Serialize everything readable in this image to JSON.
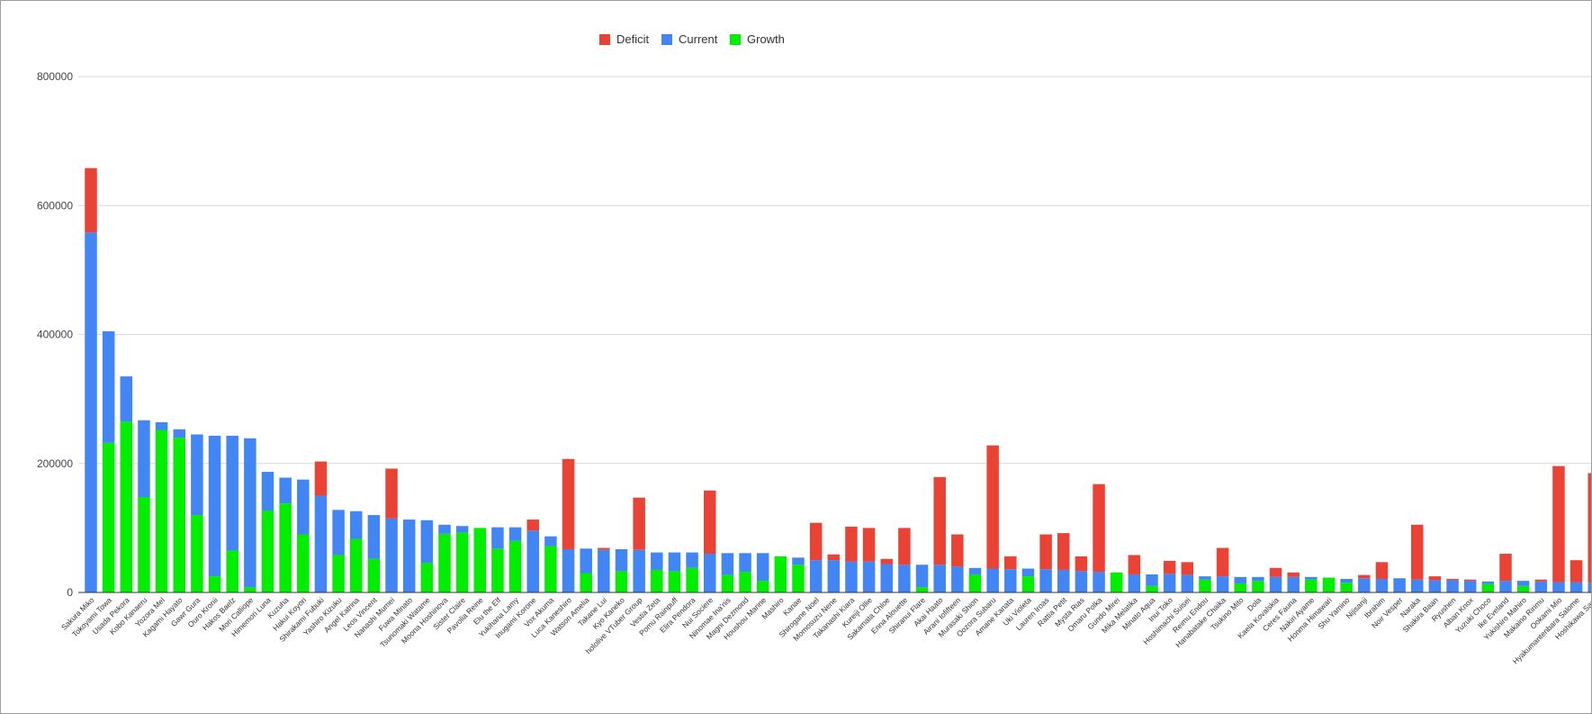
{
  "chart_data": {
    "type": "bar",
    "stacked": true,
    "title": "",
    "xlabel": "",
    "ylabel": "",
    "ylim": [
      0,
      800000
    ],
    "yticks": [
      0,
      200000,
      400000,
      600000,
      800000
    ],
    "ytick_labels": [
      "0",
      "200000",
      "400000",
      "600000",
      "800000"
    ],
    "grid": true,
    "legend_position": "top-center",
    "categories": [
      "Sakura Miko",
      "Tokoyami Towa",
      "Usada Pekora",
      "Kobo Kanaeru",
      "Yozora Mel",
      "Kagami Hayato",
      "Gawr Gura",
      "Ouro Kronii",
      "Hakos Baelz",
      "Mori Calliope",
      "Himemori Luna",
      "Kuzuha",
      "Hakui Koyori",
      "Shirakami Fubuki",
      "Yashiro Kizuku",
      "Angel Katrina",
      "Leos Vincent",
      "Nanashi Mumei",
      "Fuwa Minato",
      "Tsunomaki Watame",
      "Moona Hoshinova",
      "Sister Claire",
      "Pavolia Reine",
      "Elu the Elf",
      "Yukihana Lamy",
      "Inugami Korone",
      "Vox Akuma",
      "Luca Kaneshiro",
      "Watson Amelia",
      "Takane Lui",
      "Kyo Kaneko",
      "hololive VTuber Group",
      "Vestia Zeta",
      "Pomu Rainpuff",
      "Elira Pendora",
      "Nui Sociere",
      "Ninomae Ina'nis",
      "Magni Dezmond",
      "Houshou Marine",
      "Mashiro",
      "Kanae",
      "Shirogane Noel",
      "Momosuzu Nene",
      "Takanashi Kiara",
      "Kureiji Ollie",
      "Sakamata Chloe",
      "Enna Alouette",
      "Shiranui Flare",
      "Akai Haato",
      "Airani Iofifteen",
      "Murasaki Shion",
      "Oozora Subaru",
      "Amane Kanata",
      "Uki Violeta",
      "Lauren Iroas",
      "Rattia Petit",
      "Mysta Rias",
      "Omaru Polka",
      "Gundo Mirei",
      "Mika Melatika",
      "Minato Aqua",
      "Inui Toko",
      "Hoshimachi Suisei",
      "Reimu Endou",
      "Hanabatake Chaika",
      "Tsukino Mito",
      "Dola",
      "Kaela Kovalskia",
      "Ceres Fauna",
      "Nakiri Ayame",
      "Honma Himawari",
      "Shu Yamino",
      "Nijisanji",
      "Ibrahim",
      "Noir Vesper",
      "Naraka",
      "Shakira Baan",
      "Ryushen",
      "Alban Knox",
      "Yuzuki Choco",
      "Ike Eveland",
      "Yukishiro Mahiro",
      "Makaino Ririmu",
      "Ookami Mio",
      "Hyakumantenbara Salome",
      "Hoshikawa Sara"
    ],
    "series": [
      {
        "name": "Growth",
        "values": [
          0,
          232000,
          265000,
          148000,
          252000,
          240000,
          120000,
          25000,
          65000,
          8000,
          127000,
          138000,
          90000,
          0,
          58000,
          83000,
          52000,
          0,
          0,
          46000,
          91000,
          93000,
          100000,
          68000,
          80000,
          0,
          72000,
          0,
          30000,
          0,
          33000,
          0,
          35000,
          33000,
          38000,
          0,
          27000,
          32000,
          18000,
          56000,
          43000,
          0,
          0,
          0,
          0,
          0,
          0,
          8000,
          0,
          0,
          28000,
          0,
          0,
          25000,
          0,
          0,
          0,
          0,
          31000,
          0,
          10000,
          0,
          0,
          20000,
          0,
          14000,
          18000,
          0,
          0,
          20000,
          23000,
          15000,
          0,
          0,
          0,
          0,
          0,
          0,
          0,
          13000,
          0,
          10000,
          0,
          0,
          0,
          0
        ]
      },
      {
        "name": "Current",
        "values": [
          558000,
          173000,
          70000,
          119000,
          12000,
          13000,
          125000,
          218000,
          178000,
          231000,
          60000,
          40000,
          85000,
          150000,
          70000,
          43000,
          68000,
          115000,
          113000,
          66000,
          14000,
          10000,
          0,
          33000,
          21000,
          96000,
          15000,
          67000,
          38000,
          66000,
          34000,
          66000,
          27000,
          29000,
          24000,
          60000,
          34000,
          29000,
          43000,
          0,
          11000,
          50000,
          50000,
          48000,
          48000,
          44000,
          43000,
          35000,
          43000,
          40000,
          10000,
          37000,
          36000,
          12000,
          36000,
          35000,
          33000,
          32000,
          0,
          28000,
          18000,
          29000,
          27000,
          5000,
          25000,
          10000,
          6000,
          24000,
          24000,
          4000,
          0,
          6000,
          22000,
          21000,
          22000,
          20000,
          19000,
          19000,
          18000,
          4000,
          18000,
          8000,
          17000,
          16000,
          16000,
          15000
        ]
      },
      {
        "name": "Deficit",
        "values": [
          100000,
          0,
          0,
          0,
          0,
          0,
          0,
          0,
          0,
          0,
          0,
          0,
          0,
          53000,
          0,
          0,
          0,
          77000,
          0,
          0,
          0,
          0,
          0,
          0,
          0,
          17000,
          0,
          140000,
          0,
          3000,
          0,
          81000,
          0,
          0,
          0,
          98000,
          0,
          0,
          0,
          0,
          0,
          58000,
          9000,
          54000,
          52000,
          8000,
          57000,
          0,
          136000,
          50000,
          0,
          191000,
          20000,
          0,
          54000,
          57000,
          23000,
          136000,
          0,
          30000,
          0,
          20000,
          20000,
          0,
          44000,
          0,
          0,
          14000,
          7000,
          0,
          0,
          0,
          5000,
          26000,
          0,
          85000,
          6000,
          2000,
          2000,
          0,
          42000,
          0,
          3000,
          180000,
          34000,
          170000
        ]
      }
    ],
    "colors": {
      "Deficit": "#ea4335",
      "Current": "#4285f4",
      "Growth": "#00ee00"
    },
    "legend_order": [
      "Deficit",
      "Current",
      "Growth"
    ]
  }
}
